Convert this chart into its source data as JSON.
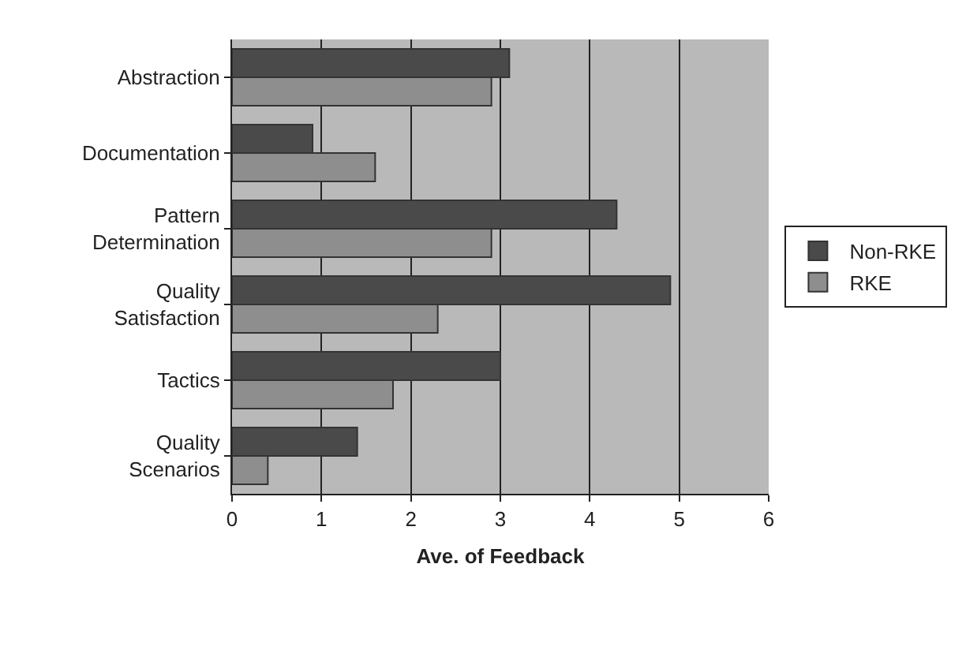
{
  "chart_data": {
    "type": "bar",
    "orientation": "horizontal",
    "xlabel": "Ave. of Feedback",
    "categories": [
      "Abstraction",
      "Documentation",
      "Pattern Determination",
      "Quality Satisfaction",
      "Tactics",
      "Quality Scenarios"
    ],
    "series": [
      {
        "name": "Non-RKE",
        "color": "#4a4a4a",
        "values": [
          3.1,
          0.9,
          4.3,
          4.9,
          3.0,
          1.4
        ]
      },
      {
        "name": "RKE",
        "color": "#8e8e8e",
        "values": [
          2.9,
          1.6,
          2.9,
          2.3,
          1.8,
          0.4
        ]
      }
    ],
    "xlim": [
      0,
      6
    ],
    "xticks": [
      0,
      1,
      2,
      3,
      4,
      5,
      6
    ],
    "grid": "x",
    "legend": "right"
  }
}
